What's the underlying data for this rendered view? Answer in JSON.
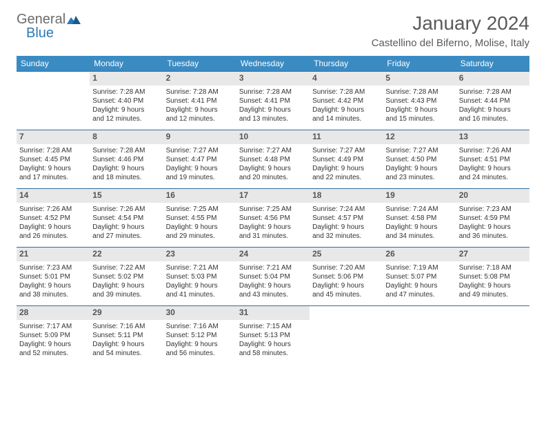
{
  "logo": {
    "word1": "General",
    "word2": "Blue"
  },
  "colors": {
    "headerBg": "#3b8bc3",
    "headerText": "#ffffff",
    "daynumBg": "#e8e8e8",
    "rowBorder": "#2d6d9e",
    "logoBlue": "#2a7ab8",
    "textGray": "#5a5a5a"
  },
  "title": "January 2024",
  "location": "Castellino del Biferno, Molise, Italy",
  "dayHeaders": [
    "Sunday",
    "Monday",
    "Tuesday",
    "Wednesday",
    "Thursday",
    "Friday",
    "Saturday"
  ],
  "weeks": [
    [
      {
        "day": "",
        "sunrise": "",
        "sunset": "",
        "dayl1": "",
        "dayl2": ""
      },
      {
        "day": "1",
        "sunrise": "Sunrise: 7:28 AM",
        "sunset": "Sunset: 4:40 PM",
        "dayl1": "Daylight: 9 hours",
        "dayl2": "and 12 minutes."
      },
      {
        "day": "2",
        "sunrise": "Sunrise: 7:28 AM",
        "sunset": "Sunset: 4:41 PM",
        "dayl1": "Daylight: 9 hours",
        "dayl2": "and 12 minutes."
      },
      {
        "day": "3",
        "sunrise": "Sunrise: 7:28 AM",
        "sunset": "Sunset: 4:41 PM",
        "dayl1": "Daylight: 9 hours",
        "dayl2": "and 13 minutes."
      },
      {
        "day": "4",
        "sunrise": "Sunrise: 7:28 AM",
        "sunset": "Sunset: 4:42 PM",
        "dayl1": "Daylight: 9 hours",
        "dayl2": "and 14 minutes."
      },
      {
        "day": "5",
        "sunrise": "Sunrise: 7:28 AM",
        "sunset": "Sunset: 4:43 PM",
        "dayl1": "Daylight: 9 hours",
        "dayl2": "and 15 minutes."
      },
      {
        "day": "6",
        "sunrise": "Sunrise: 7:28 AM",
        "sunset": "Sunset: 4:44 PM",
        "dayl1": "Daylight: 9 hours",
        "dayl2": "and 16 minutes."
      }
    ],
    [
      {
        "day": "7",
        "sunrise": "Sunrise: 7:28 AM",
        "sunset": "Sunset: 4:45 PM",
        "dayl1": "Daylight: 9 hours",
        "dayl2": "and 17 minutes."
      },
      {
        "day": "8",
        "sunrise": "Sunrise: 7:28 AM",
        "sunset": "Sunset: 4:46 PM",
        "dayl1": "Daylight: 9 hours",
        "dayl2": "and 18 minutes."
      },
      {
        "day": "9",
        "sunrise": "Sunrise: 7:27 AM",
        "sunset": "Sunset: 4:47 PM",
        "dayl1": "Daylight: 9 hours",
        "dayl2": "and 19 minutes."
      },
      {
        "day": "10",
        "sunrise": "Sunrise: 7:27 AM",
        "sunset": "Sunset: 4:48 PM",
        "dayl1": "Daylight: 9 hours",
        "dayl2": "and 20 minutes."
      },
      {
        "day": "11",
        "sunrise": "Sunrise: 7:27 AM",
        "sunset": "Sunset: 4:49 PM",
        "dayl1": "Daylight: 9 hours",
        "dayl2": "and 22 minutes."
      },
      {
        "day": "12",
        "sunrise": "Sunrise: 7:27 AM",
        "sunset": "Sunset: 4:50 PM",
        "dayl1": "Daylight: 9 hours",
        "dayl2": "and 23 minutes."
      },
      {
        "day": "13",
        "sunrise": "Sunrise: 7:26 AM",
        "sunset": "Sunset: 4:51 PM",
        "dayl1": "Daylight: 9 hours",
        "dayl2": "and 24 minutes."
      }
    ],
    [
      {
        "day": "14",
        "sunrise": "Sunrise: 7:26 AM",
        "sunset": "Sunset: 4:52 PM",
        "dayl1": "Daylight: 9 hours",
        "dayl2": "and 26 minutes."
      },
      {
        "day": "15",
        "sunrise": "Sunrise: 7:26 AM",
        "sunset": "Sunset: 4:54 PM",
        "dayl1": "Daylight: 9 hours",
        "dayl2": "and 27 minutes."
      },
      {
        "day": "16",
        "sunrise": "Sunrise: 7:25 AM",
        "sunset": "Sunset: 4:55 PM",
        "dayl1": "Daylight: 9 hours",
        "dayl2": "and 29 minutes."
      },
      {
        "day": "17",
        "sunrise": "Sunrise: 7:25 AM",
        "sunset": "Sunset: 4:56 PM",
        "dayl1": "Daylight: 9 hours",
        "dayl2": "and 31 minutes."
      },
      {
        "day": "18",
        "sunrise": "Sunrise: 7:24 AM",
        "sunset": "Sunset: 4:57 PM",
        "dayl1": "Daylight: 9 hours",
        "dayl2": "and 32 minutes."
      },
      {
        "day": "19",
        "sunrise": "Sunrise: 7:24 AM",
        "sunset": "Sunset: 4:58 PM",
        "dayl1": "Daylight: 9 hours",
        "dayl2": "and 34 minutes."
      },
      {
        "day": "20",
        "sunrise": "Sunrise: 7:23 AM",
        "sunset": "Sunset: 4:59 PM",
        "dayl1": "Daylight: 9 hours",
        "dayl2": "and 36 minutes."
      }
    ],
    [
      {
        "day": "21",
        "sunrise": "Sunrise: 7:23 AM",
        "sunset": "Sunset: 5:01 PM",
        "dayl1": "Daylight: 9 hours",
        "dayl2": "and 38 minutes."
      },
      {
        "day": "22",
        "sunrise": "Sunrise: 7:22 AM",
        "sunset": "Sunset: 5:02 PM",
        "dayl1": "Daylight: 9 hours",
        "dayl2": "and 39 minutes."
      },
      {
        "day": "23",
        "sunrise": "Sunrise: 7:21 AM",
        "sunset": "Sunset: 5:03 PM",
        "dayl1": "Daylight: 9 hours",
        "dayl2": "and 41 minutes."
      },
      {
        "day": "24",
        "sunrise": "Sunrise: 7:21 AM",
        "sunset": "Sunset: 5:04 PM",
        "dayl1": "Daylight: 9 hours",
        "dayl2": "and 43 minutes."
      },
      {
        "day": "25",
        "sunrise": "Sunrise: 7:20 AM",
        "sunset": "Sunset: 5:06 PM",
        "dayl1": "Daylight: 9 hours",
        "dayl2": "and 45 minutes."
      },
      {
        "day": "26",
        "sunrise": "Sunrise: 7:19 AM",
        "sunset": "Sunset: 5:07 PM",
        "dayl1": "Daylight: 9 hours",
        "dayl2": "and 47 minutes."
      },
      {
        "day": "27",
        "sunrise": "Sunrise: 7:18 AM",
        "sunset": "Sunset: 5:08 PM",
        "dayl1": "Daylight: 9 hours",
        "dayl2": "and 49 minutes."
      }
    ],
    [
      {
        "day": "28",
        "sunrise": "Sunrise: 7:17 AM",
        "sunset": "Sunset: 5:09 PM",
        "dayl1": "Daylight: 9 hours",
        "dayl2": "and 52 minutes."
      },
      {
        "day": "29",
        "sunrise": "Sunrise: 7:16 AM",
        "sunset": "Sunset: 5:11 PM",
        "dayl1": "Daylight: 9 hours",
        "dayl2": "and 54 minutes."
      },
      {
        "day": "30",
        "sunrise": "Sunrise: 7:16 AM",
        "sunset": "Sunset: 5:12 PM",
        "dayl1": "Daylight: 9 hours",
        "dayl2": "and 56 minutes."
      },
      {
        "day": "31",
        "sunrise": "Sunrise: 7:15 AM",
        "sunset": "Sunset: 5:13 PM",
        "dayl1": "Daylight: 9 hours",
        "dayl2": "and 58 minutes."
      },
      {
        "day": "",
        "sunrise": "",
        "sunset": "",
        "dayl1": "",
        "dayl2": ""
      },
      {
        "day": "",
        "sunrise": "",
        "sunset": "",
        "dayl1": "",
        "dayl2": ""
      },
      {
        "day": "",
        "sunrise": "",
        "sunset": "",
        "dayl1": "",
        "dayl2": ""
      }
    ]
  ]
}
